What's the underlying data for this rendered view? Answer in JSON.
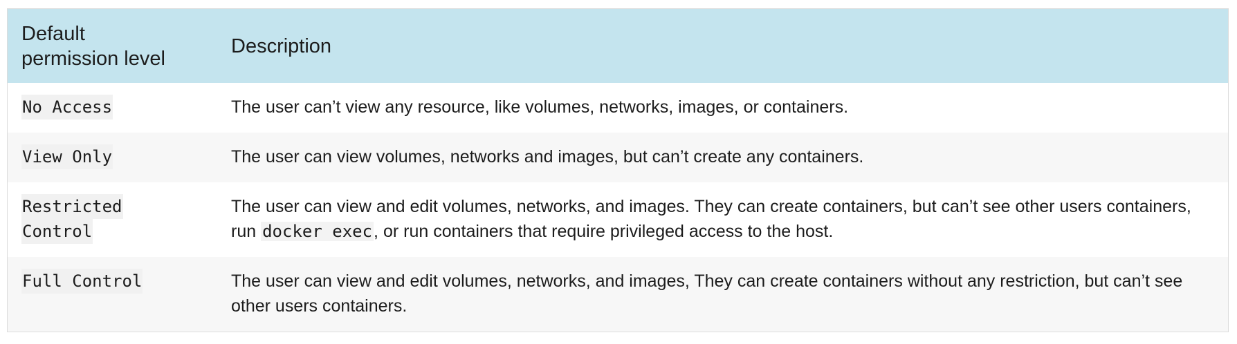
{
  "table": {
    "headers": {
      "level": "Default permission level",
      "level_line1": "Default",
      "level_line2": "permission level",
      "description": "Description"
    },
    "rows": [
      {
        "level": "No Access",
        "description": "The user can’t view any resource, like volumes, networks, images, or containers."
      },
      {
        "level": "View Only",
        "description": "The user can view volumes, networks and images, but can’t create any containers."
      },
      {
        "level": "Restricted Control",
        "level_line1": "Restricted",
        "level_line2": "Control",
        "description_before": "The user can view and edit volumes, networks, and images. They can create containers, but can’t see other users containers, run ",
        "description_code": "docker exec",
        "description_after": ", or run containers that require privileged access to the host."
      },
      {
        "level": "Full Control",
        "description": "The user can view and edit volumes, networks, and images, They can create containers without any restriction, but can’t see other users containers."
      }
    ]
  },
  "colors": {
    "header_background": "#c4e4ee",
    "row_stripe": "#f7f7f7",
    "border": "#dcdcdc",
    "text": "#1c1c1c"
  }
}
